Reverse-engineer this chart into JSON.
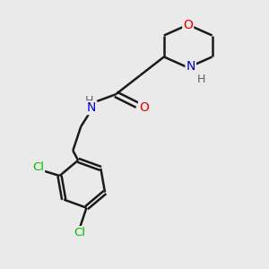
{
  "bg_color": "#eaeaea",
  "bond_color": "#1a1a1a",
  "bond_width": 1.8,
  "atom_colors": {
    "O": "#e00000",
    "N": "#0000cc",
    "Cl": "#00bb00",
    "H": "#606060"
  },
  "figsize": [
    3.0,
    3.0
  ],
  "dpi": 100,
  "xlim": [
    0,
    10
  ],
  "ylim": [
    0,
    10
  ]
}
